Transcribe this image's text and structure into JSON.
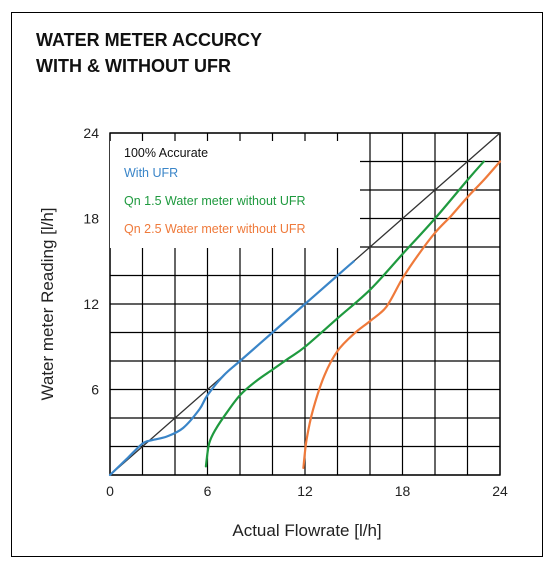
{
  "title_lines": [
    "WATER METER ACCURCY",
    "WITH & WITHOUT UFR"
  ],
  "chart_data": {
    "type": "line",
    "title": "WATER METER ACCURCY WITH & WITHOUT UFR",
    "xlabel": "Actual Flowrate [l/h]",
    "ylabel": "Water meter Reading [l/h]",
    "xlim": [
      0,
      24
    ],
    "ylim": [
      0,
      24
    ],
    "x_ticks": [
      0,
      6,
      12,
      18,
      24
    ],
    "y_ticks": [
      6,
      12,
      18,
      24
    ],
    "grid": true,
    "grid_step": 2,
    "legend_position": "top-left",
    "series": [
      {
        "name": "100% Accurate",
        "color": "#333333",
        "points": [
          [
            0,
            0
          ],
          [
            24,
            24
          ]
        ]
      },
      {
        "name": "With UFR",
        "color": "#3a85c8",
        "points": [
          [
            0,
            0
          ],
          [
            1,
            1.1
          ],
          [
            2,
            2.2
          ],
          [
            2.6,
            2.45
          ],
          [
            3.5,
            2.7
          ],
          [
            4.5,
            3.3
          ],
          [
            5.5,
            4.6
          ],
          [
            6,
            5.6
          ],
          [
            7,
            7
          ],
          [
            8,
            8
          ],
          [
            10,
            10
          ],
          [
            12,
            12
          ],
          [
            14,
            14
          ],
          [
            15,
            15
          ]
        ]
      },
      {
        "name": "Qn 1.5 Water meter without UFR",
        "color": "#1f9a3f",
        "points": [
          [
            5.9,
            0.6
          ],
          [
            6.1,
            2.2
          ],
          [
            6.5,
            3.2
          ],
          [
            7.2,
            4.4
          ],
          [
            8,
            5.6
          ],
          [
            9,
            6.6
          ],
          [
            10,
            7.4
          ],
          [
            11,
            8.2
          ],
          [
            12,
            9
          ],
          [
            14,
            11
          ],
          [
            16,
            13
          ],
          [
            18,
            15.5
          ],
          [
            20,
            18
          ],
          [
            22,
            20.7
          ],
          [
            23,
            22
          ]
        ]
      },
      {
        "name": "Qn 2.5 Water meter without UFR",
        "color": "#ef7a3b",
        "points": [
          [
            11.9,
            0.5
          ],
          [
            12.1,
            2.5
          ],
          [
            12.5,
            4.6
          ],
          [
            13.2,
            7
          ],
          [
            14,
            8.7
          ],
          [
            15,
            9.9
          ],
          [
            16,
            10.8
          ],
          [
            17,
            11.8
          ],
          [
            18,
            13.8
          ],
          [
            19,
            15.5
          ],
          [
            20,
            17
          ],
          [
            21,
            18.2
          ],
          [
            22,
            19.5
          ],
          [
            23,
            20.7
          ],
          [
            24,
            22
          ]
        ]
      }
    ]
  }
}
